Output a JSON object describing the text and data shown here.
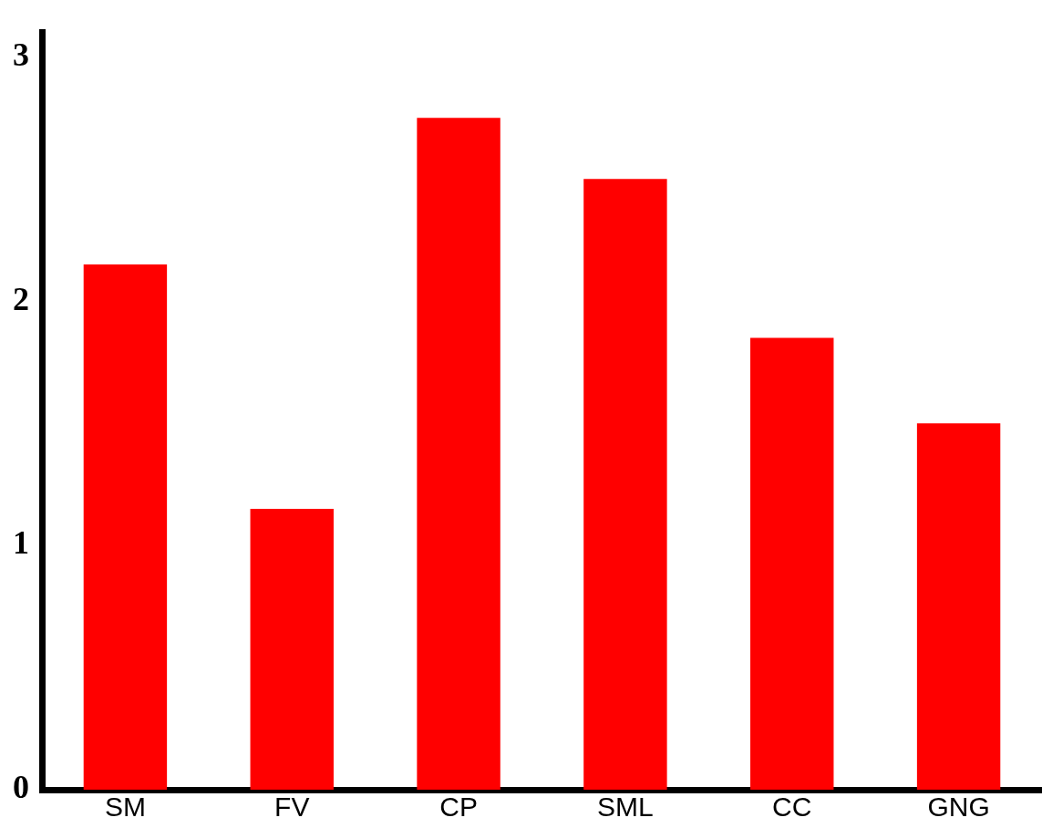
{
  "chart_data": {
    "type": "bar",
    "categories": [
      "SM",
      "FV",
      "CP",
      "SML",
      "CC",
      "GNG"
    ],
    "values": [
      2.15,
      1.15,
      2.75,
      2.5,
      1.85,
      1.5
    ],
    "color": "#ff0000",
    "ylim": [
      0,
      3.1
    ],
    "yticks": [
      0,
      1,
      2,
      3
    ],
    "grid": false,
    "legend": false
  }
}
